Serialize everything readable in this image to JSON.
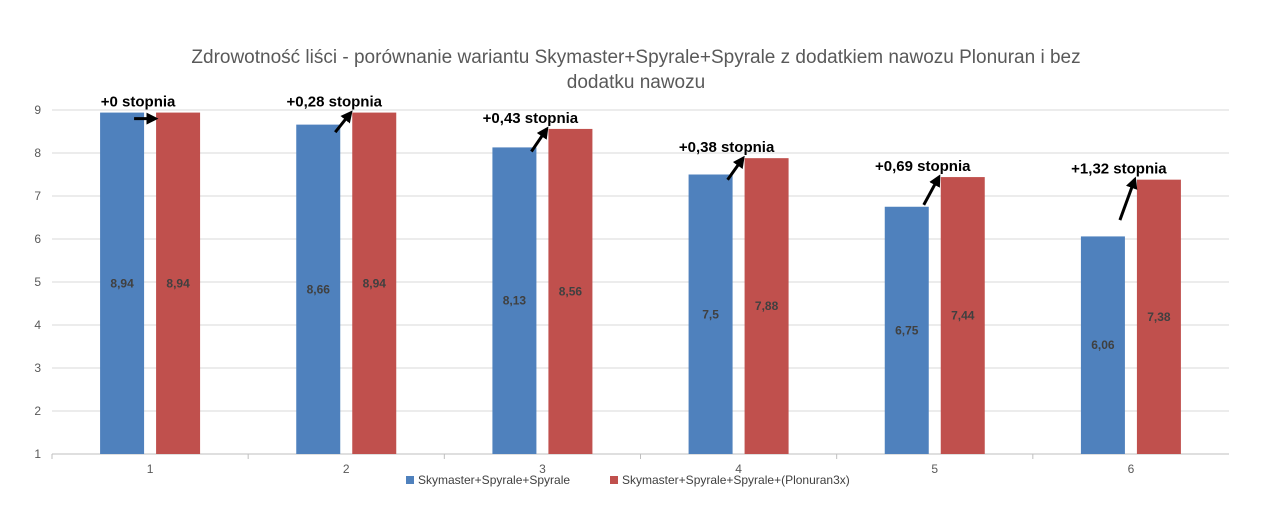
{
  "chart_data": {
    "type": "bar",
    "title_line1": "Zdrowotność liści - porównanie wariantu Skymaster+Spyrale+Spyrale z dodatkiem nawozu Plonuran i bez",
    "title_line2": "dodatku nawozu",
    "categories": [
      "1",
      "2",
      "3",
      "4",
      "5",
      "6"
    ],
    "series": [
      {
        "name": "Skymaster+Spyrale+Spyrale",
        "color": "#4f81bd",
        "values": [
          8.94,
          8.66,
          8.13,
          7.5,
          6.75,
          6.06
        ],
        "labels": [
          "8,94",
          "8,66",
          "8,13",
          "7,5",
          "6,75",
          "6,06"
        ]
      },
      {
        "name": "Skymaster+Spyrale+Spyrale+(Plonuran3x)",
        "color": "#c0504d",
        "values": [
          8.94,
          8.94,
          8.56,
          7.88,
          7.44,
          7.38
        ],
        "labels": [
          "8,94",
          "8,94",
          "8,56",
          "7,88",
          "7,44",
          "7,38"
        ]
      }
    ],
    "annotations": [
      "+0 stopnia",
      "+0,28 stopnia",
      "+0,43 stopnia",
      "+0,38 stopnia",
      "+0,69 stopnia",
      "+1,32 stopnia"
    ],
    "y_ticks": [
      "1",
      "2",
      "3",
      "4",
      "5",
      "6",
      "7",
      "8",
      "9"
    ],
    "ylim": [
      1,
      9
    ],
    "grid": true,
    "legend_position": "bottom"
  }
}
